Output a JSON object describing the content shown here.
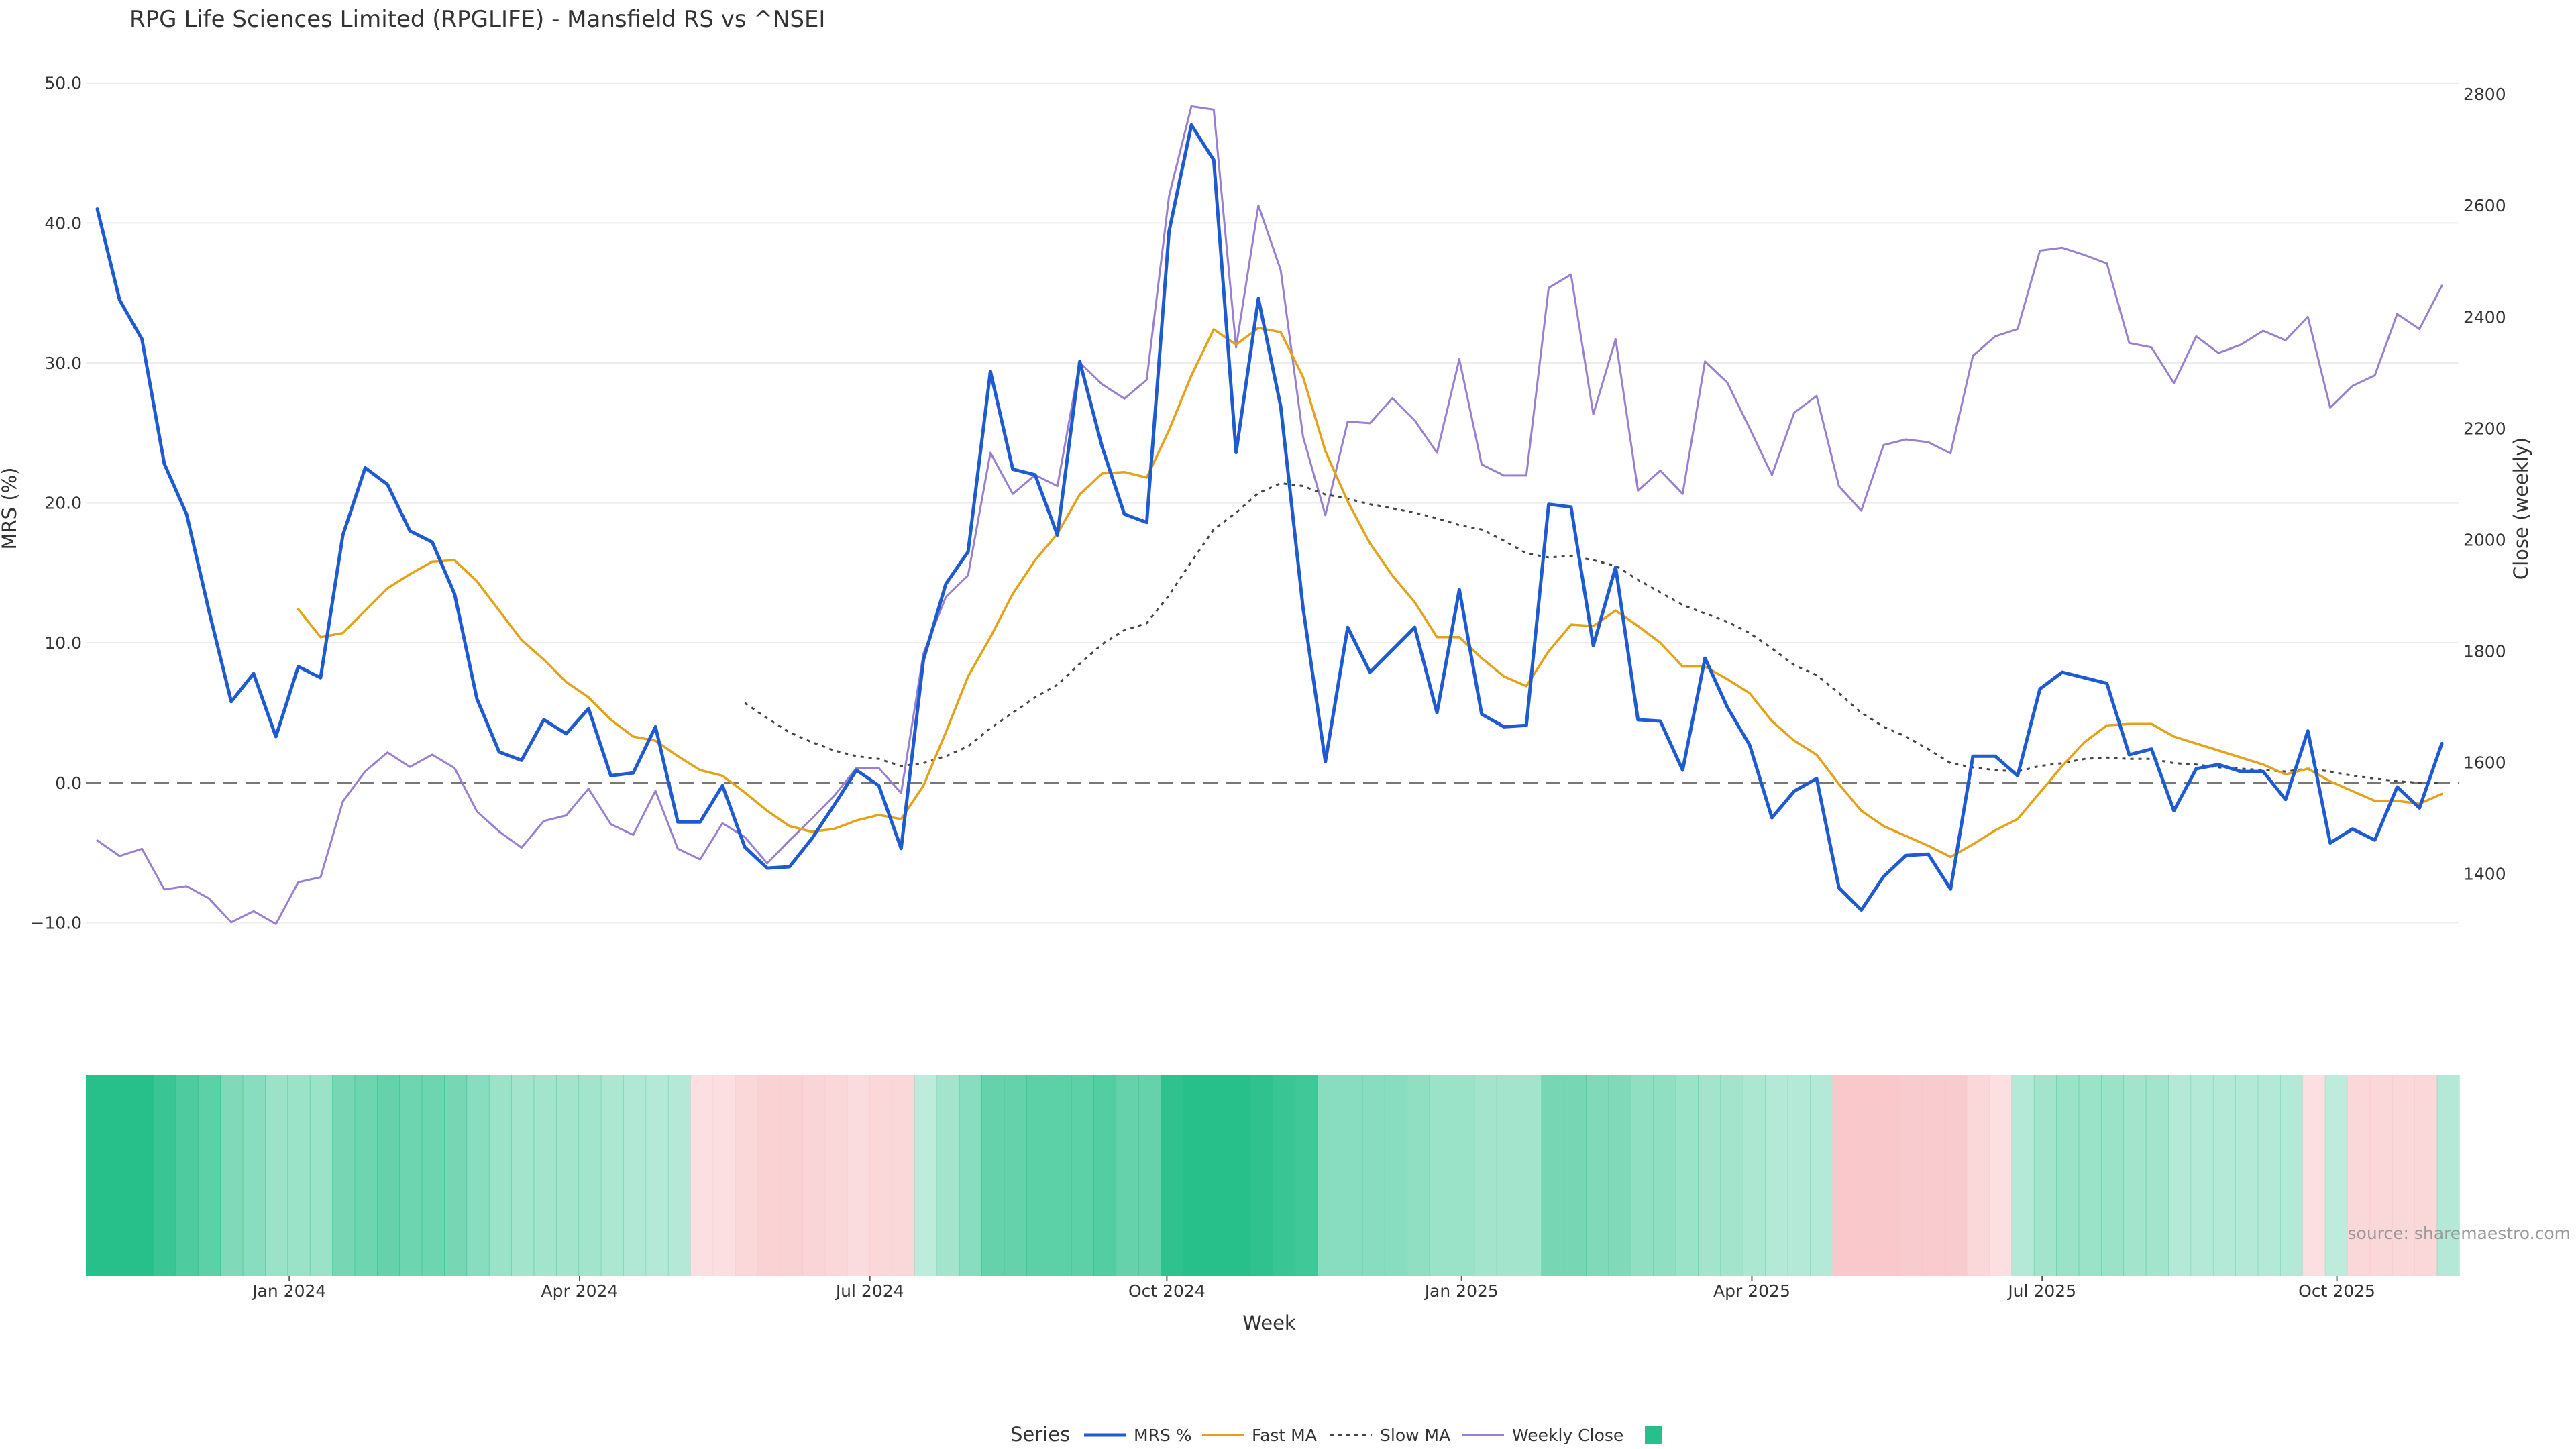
{
  "chart_data": {
    "type": "line",
    "title": "RPG Life Sciences Limited (RPGLIFE) - Mansfield RS vs ^NSEI",
    "xlabel": "Week",
    "ylabel_left": "MRS (%)",
    "ylabel_right": "Close (weekly)",
    "source": "source: sharemaestro.com",
    "x_tick_labels": [
      "Jan 2024",
      "Apr 2024",
      "Jul 2024",
      "Oct 2024",
      "Jan 2025",
      "Apr 2025",
      "Jul 2025",
      "Oct 2025"
    ],
    "x_tick_weeks": [
      8.6,
      21.6,
      34.6,
      47.9,
      61.1,
      74.1,
      87.1,
      100.3
    ],
    "y_left_ticks": [
      "50.0",
      "40.0",
      "30.0",
      "20.0",
      "10.0",
      "0.0",
      "−10.0"
    ],
    "y_left_tick_values": [
      50,
      40,
      30,
      20,
      10,
      0,
      -10
    ],
    "y_left_range": [
      -13,
      52
    ],
    "y_right_ticks": [
      "2800",
      "2600",
      "2400",
      "2200",
      "2000",
      "1800",
      "1600",
      "1400"
    ],
    "y_right_tick_values": [
      2800,
      2600,
      2400,
      2200,
      2000,
      1800,
      1600,
      1400
    ],
    "y_right_range": [
      1237,
      2870
    ],
    "grid": true,
    "legend_placement": "bottom-center",
    "legend_title": "Series",
    "zero_line": true,
    "series": [
      {
        "name": "MRS %",
        "color": "#1f5bd0",
        "style": "solid",
        "values": [
          41,
          34.5,
          31.7,
          22.8,
          19.2,
          12.3,
          5.8,
          7.8,
          3.3,
          8.3,
          7.5,
          17.7,
          22.5,
          21.3,
          18,
          17.2,
          13.5,
          6,
          2.2,
          1.6,
          4.5,
          3.5,
          5.3,
          0.5,
          0.7,
          4,
          -2.8,
          -2.8,
          -0.2,
          -4.6,
          -6.1,
          -6.0,
          -4.0,
          -1.6,
          0.9,
          -0.2,
          -4.7,
          8.8,
          14.2,
          16.5,
          29.4,
          22.4,
          22,
          17.7,
          30.1,
          24,
          19.2,
          18.6,
          39.4,
          47,
          44.5,
          23.6,
          34.6,
          26.9,
          12.5,
          1.5,
          11.1,
          7.9,
          9.5,
          11.1,
          5,
          13.8,
          4.9,
          4,
          4.1,
          19.9,
          19.7,
          9.8,
          15.4,
          4.5,
          4.4,
          0.9,
          8.9,
          5.4,
          2.7,
          -2.5,
          -0.6,
          0.3,
          -7.5,
          -9.1,
          -6.7,
          -5.2,
          -5.1,
          -7.6,
          1.9,
          1.9,
          0.5,
          6.7,
          7.9,
          7.5,
          7.1,
          2.0,
          2.4,
          -2.0,
          1.0,
          1.3,
          0.8,
          0.8,
          -1.2,
          3.7,
          -4.3,
          -3.3,
          -4.1,
          -0.3,
          -1.8,
          2.8
        ]
      },
      {
        "name": "Fast MA",
        "color": "#e3a21a",
        "style": "solid",
        "values": [
          null,
          null,
          null,
          null,
          null,
          null,
          null,
          null,
          null,
          12.4,
          10.4,
          10.7,
          12.3,
          13.9,
          14.9,
          15.8,
          15.9,
          14.4,
          12.3,
          10.2,
          8.8,
          7.2,
          6.1,
          4.5,
          3.3,
          3,
          1.9,
          0.9,
          0.5,
          -0.7,
          -2,
          -3.1,
          -3.5,
          -3.3,
          -2.7,
          -2.3,
          -2.6,
          -0.2,
          3.6,
          7.6,
          10.4,
          13.5,
          15.9,
          17.8,
          20.6,
          22.1,
          22.2,
          21.8,
          25.2,
          29.1,
          32.4,
          31.3,
          32.5,
          32.2,
          29,
          23.7,
          20.1,
          17.1,
          14.8,
          12.9,
          10.4,
          10.4,
          8.9,
          7.6,
          6.9,
          9.4,
          11.3,
          11.2,
          12.3,
          11.2,
          10,
          8.3,
          8.3,
          7.4,
          6.4,
          4.4,
          3,
          2,
          -0.1,
          -2,
          -3.1,
          -3.8,
          -4.5,
          -5.3,
          -4.4,
          -3.4,
          -2.6,
          -0.7,
          1.2,
          2.9,
          4.1,
          4.2,
          4.2,
          3.3,
          2.8,
          2.3,
          1.8,
          1.3,
          0.6,
          1.0,
          0.1,
          -0.6,
          -1.3,
          -1.3,
          -1.5,
          -0.8
        ]
      },
      {
        "name": "Slow MA",
        "color": "#444444",
        "style": "dotted",
        "values": [
          null,
          null,
          null,
          null,
          null,
          null,
          null,
          null,
          null,
          null,
          null,
          null,
          null,
          null,
          null,
          null,
          null,
          null,
          null,
          null,
          null,
          null,
          null,
          null,
          null,
          null,
          null,
          null,
          null,
          5.7,
          4.6,
          3.6,
          2.9,
          2.3,
          1.9,
          1.7,
          1.2,
          1.4,
          1.9,
          2.6,
          3.9,
          5,
          6.1,
          7,
          8.5,
          9.9,
          10.9,
          11.4,
          13.4,
          15.8,
          18.1,
          19.3,
          20.7,
          21.4,
          21.2,
          20.6,
          20.3,
          19.9,
          19.6,
          19.3,
          18.9,
          18.4,
          18.1,
          17.3,
          16.4,
          16.1,
          16.2,
          15.9,
          15.5,
          14.5,
          13.6,
          12.7,
          12.1,
          11.5,
          10.7,
          9.6,
          8.4,
          7.7,
          6.4,
          5.0,
          4.0,
          3.3,
          2.4,
          1.4,
          1.1,
          0.9,
          0.8,
          1.2,
          1.4,
          1.7,
          1.8,
          1.7,
          1.7,
          1.4,
          1.3,
          1.1,
          1.0,
          0.9,
          0.8,
          1.0,
          0.8,
          0.5,
          0.3,
          0.1,
          0.0,
          0.0
        ]
      },
      {
        "name": "Weekly Close",
        "color": "#9a7fd0",
        "style": "solid",
        "axis": "right",
        "values": [
          1460,
          1432,
          1445,
          1372,
          1378,
          1356,
          1313,
          1333,
          1310,
          1385,
          1394,
          1530,
          1584,
          1618,
          1592,
          1614,
          1590,
          1512,
          1476,
          1447,
          1495,
          1505,
          1553,
          1489,
          1470,
          1549,
          1445,
          1426,
          1491,
          1466,
          1419,
          1460,
          1499,
          1540,
          1590,
          1590,
          1545,
          1796,
          1897,
          1936,
          2156,
          2082,
          2116,
          2096,
          2318,
          2279,
          2253,
          2287,
          2617,
          2778,
          2772,
          2345,
          2600,
          2484,
          2185,
          2044,
          2212,
          2209,
          2254,
          2214,
          2156,
          2324,
          2135,
          2115,
          2115,
          2452,
          2476,
          2225,
          2360,
          2088,
          2124,
          2082,
          2320,
          2282,
          2200,
          2116,
          2228,
          2258,
          2096,
          2052,
          2170,
          2180,
          2175,
          2155,
          2330,
          2365,
          2378,
          2519,
          2524,
          2511,
          2496,
          2353,
          2345,
          2281,
          2365,
          2335,
          2350,
          2375,
          2358,
          2400,
          2237,
          2276,
          2295,
          2405,
          2378,
          2456
        ]
      }
    ],
    "heatmap": {
      "name": "",
      "positive_color": "#27c08a",
      "negative_color": "#f8c8cb",
      "values": [
        1,
        1,
        1,
        0.9,
        0.78,
        0.7,
        0.5,
        0.45,
        0.35,
        0.35,
        0.35,
        0.55,
        0.6,
        0.65,
        0.6,
        0.6,
        0.55,
        0.45,
        0.35,
        0.3,
        0.3,
        0.3,
        0.3,
        0.25,
        0.22,
        0.2,
        0.2,
        -0.2,
        -0.2,
        -0.3,
        -0.4,
        -0.4,
        -0.35,
        -0.3,
        -0.25,
        -0.3,
        -0.3,
        0.15,
        0.3,
        0.45,
        0.65,
        0.65,
        0.7,
        0.7,
        0.7,
        0.75,
        0.65,
        0.65,
        0.95,
        1,
        1,
        1,
        0.95,
        0.9,
        0.85,
        0.45,
        0.45,
        0.45,
        0.45,
        0.4,
        0.35,
        0.35,
        0.3,
        0.3,
        0.3,
        0.55,
        0.55,
        0.5,
        0.5,
        0.4,
        0.4,
        0.35,
        0.3,
        0.3,
        0.25,
        0.2,
        0.2,
        0.2,
        -0.55,
        -0.55,
        -0.55,
        -0.5,
        -0.5,
        -0.5,
        -0.3,
        -0.2,
        0.2,
        0.3,
        0.35,
        0.35,
        0.35,
        0.3,
        0.3,
        0.2,
        0.2,
        0.2,
        0.2,
        0.2,
        0.2,
        -0.2,
        0.15,
        -0.3,
        -0.3,
        -0.3,
        -0.3,
        0.2
      ]
    }
  }
}
